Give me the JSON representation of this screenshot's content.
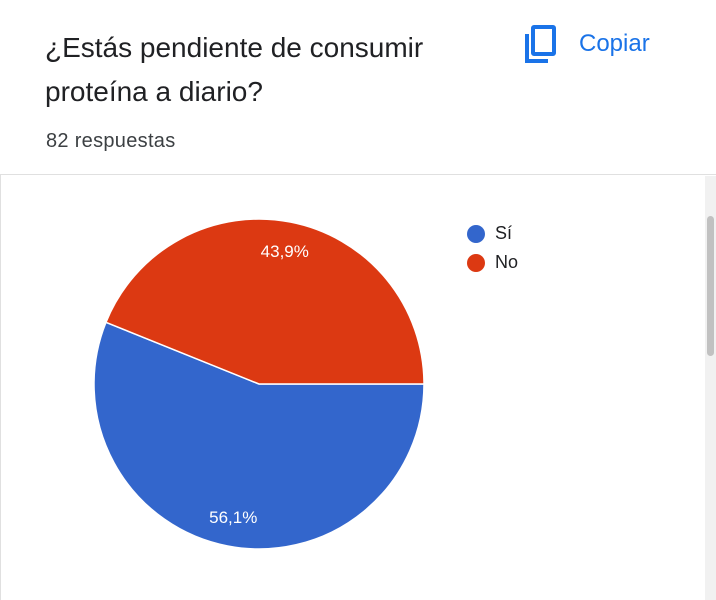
{
  "question": "¿Estás pendiente de consumir proteína a diario?",
  "copy": {
    "label": "Copiar",
    "icon": "copy-icon"
  },
  "response_count": "82 respuestas",
  "chart_data": {
    "type": "pie",
    "title": "¿Estás pendiente de consumir proteína a diario?",
    "slices": [
      {
        "label": "Sí",
        "value": 56.1,
        "display": "56,1%",
        "color": "#3366cc"
      },
      {
        "label": "No",
        "value": 43.9,
        "display": "43,9%",
        "color": "#dc3912"
      }
    ],
    "legend": [
      "Sí",
      "No"
    ],
    "legend_position": "top-right"
  },
  "colors": {
    "accent": "#1a73e8"
  }
}
